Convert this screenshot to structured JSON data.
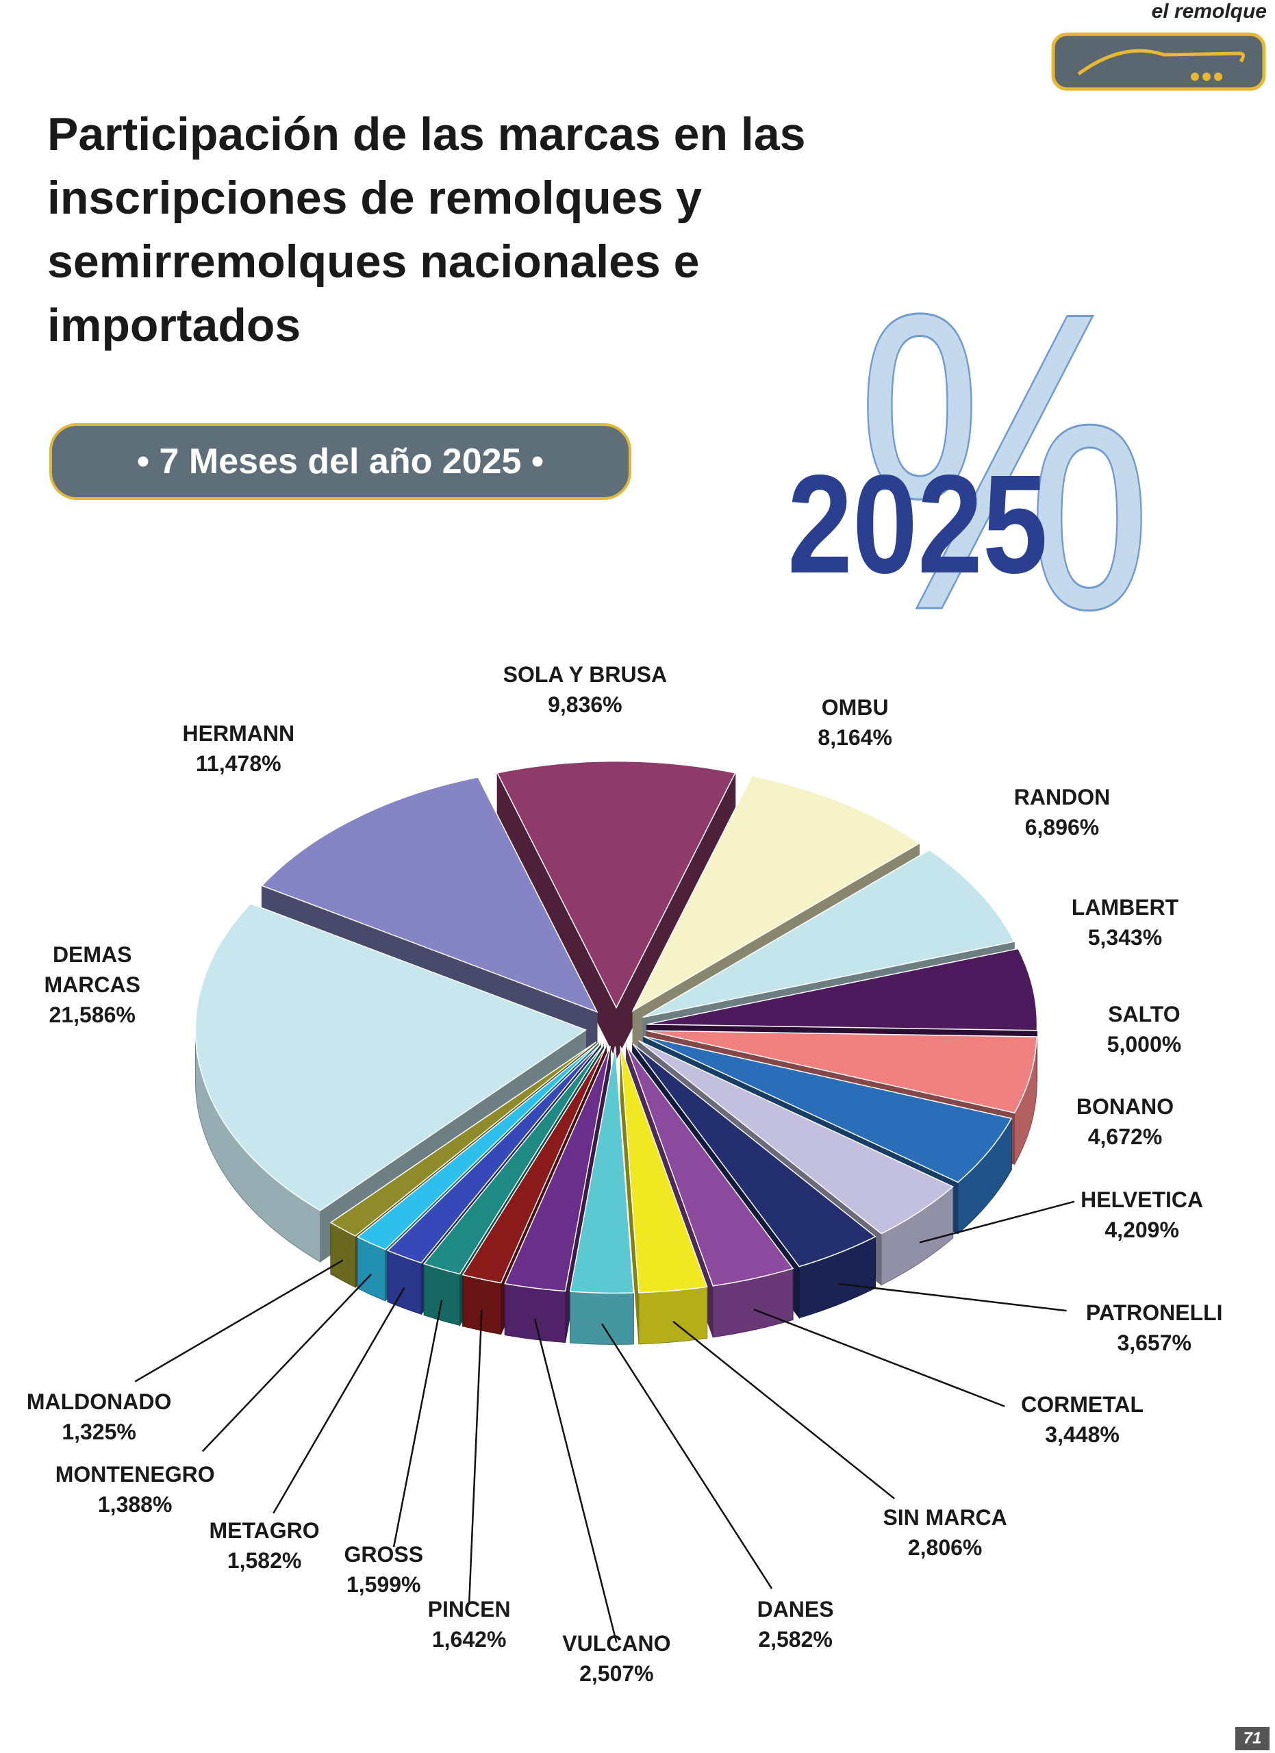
{
  "header": {
    "brand": "el remolque",
    "title": "Participación de las marcas en las inscripciones de remolques y semirremolques nacionales e importados",
    "subtitle": "• 7 Meses del año 2025 •",
    "badge_year": "2025",
    "badge_symbol": "%"
  },
  "page_number": "71",
  "chart_data": {
    "type": "pie",
    "categories": [
      "SOLA Y BRUSA",
      "OMBU",
      "RANDON",
      "LAMBERT",
      "SALTO",
      "BONANO",
      "HELVETICA",
      "PATRONELLI",
      "CORMETAL",
      "SIN MARCA",
      "DANES",
      "VULCANO",
      "PINCEN",
      "GROSS",
      "METAGRO",
      "MONTENEGRO",
      "MALDONADO",
      "DEMAS MARCAS",
      "HERMANN"
    ],
    "values": [
      9.836,
      8.164,
      6.896,
      5.343,
      5.0,
      4.672,
      4.209,
      3.657,
      3.448,
      2.806,
      2.582,
      2.507,
      1.642,
      1.599,
      1.582,
      1.388,
      1.325,
      21.586,
      11.478
    ],
    "value_labels": [
      "9,836%",
      "8,164%",
      "6,896%",
      "5,343%",
      "5,000%",
      "4,672%",
      "4,209%",
      "3,657%",
      "3,448%",
      "2,806%",
      "2,582%",
      "2,507%",
      "1,642%",
      "1,599%",
      "1,582%",
      "1,388%",
      "1,325%",
      "21,586%",
      "11,478%"
    ],
    "colors": [
      "#8e3a6a",
      "#f7f3c8",
      "#c5e5ec",
      "#4e1a5e",
      "#f08080",
      "#2a6db8",
      "#c2c0de",
      "#232f6e",
      "#8c4a9e",
      "#f0e820",
      "#5cc8d2",
      "#6a2f8a",
      "#8b1a1a",
      "#1f8a84",
      "#3748b8",
      "#2ec0ec",
      "#8f8a2a",
      "#c8e6ee",
      "#8585c5"
    ]
  }
}
